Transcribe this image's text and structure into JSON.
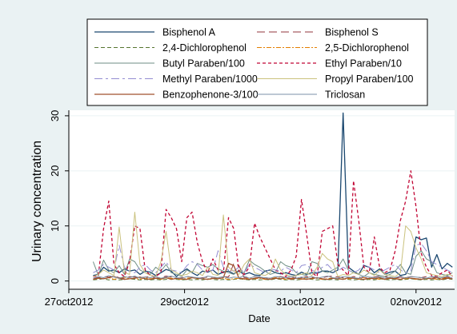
{
  "chart_data": {
    "type": "line",
    "title": "",
    "xlabel": "Date",
    "ylabel": "Urinary concentration",
    "x_domain_days": [
      "2012-10-27",
      "2012-11-02 16:00"
    ],
    "ylim": [
      -1.5,
      31
    ],
    "yticks": [
      0,
      10,
      20,
      30
    ],
    "xticks": [
      {
        "date": "2012-10-27",
        "label": "27oct2012"
      },
      {
        "date": "2012-10-29",
        "label": "29oct2012"
      },
      {
        "date": "2012-10-31",
        "label": "31oct2012"
      },
      {
        "date": "2012-11-02",
        "label": "02nov2012"
      }
    ],
    "grid": "y-major",
    "legend_position": "top",
    "x": [
      "2012-10-27 10:05",
      "2012-10-27 12:14",
      "2012-10-27 14:24",
      "2012-10-27 16:34",
      "2012-10-27 18:43",
      "2012-10-27 20:53",
      "2012-10-27 23:02",
      "2012-10-28 01:12",
      "2012-10-28 03:22",
      "2012-10-28 05:31",
      "2012-10-28 07:41",
      "2012-10-28 09:50",
      "2012-10-28 12:00",
      "2012-10-28 14:10",
      "2012-10-28 16:19",
      "2012-10-28 18:29",
      "2012-10-28 20:38",
      "2012-10-28 22:48",
      "2012-10-29 00:58",
      "2012-10-29 03:07",
      "2012-10-29 05:17",
      "2012-10-29 07:26",
      "2012-10-29 09:36",
      "2012-10-29 11:46",
      "2012-10-29 13:55",
      "2012-10-29 16:05",
      "2012-10-29 18:14",
      "2012-10-29 20:24",
      "2012-10-29 22:34",
      "2012-10-30 00:43",
      "2012-10-30 02:53",
      "2012-10-30 05:02",
      "2012-10-30 07:12",
      "2012-10-30 09:22",
      "2012-10-30 11:31",
      "2012-10-30 13:41",
      "2012-10-30 15:50",
      "2012-10-30 18:00",
      "2012-10-30 20:10",
      "2012-10-30 22:19",
      "2012-10-31 00:29",
      "2012-10-31 02:38",
      "2012-10-31 04:48",
      "2012-10-31 06:58",
      "2012-10-31 09:07",
      "2012-10-31 11:17",
      "2012-10-31 13:26",
      "2012-10-31 15:36",
      "2012-10-31 17:46",
      "2012-10-31 19:55",
      "2012-10-31 22:05",
      "2012-11-01 00:14",
      "2012-11-01 02:24",
      "2012-11-01 04:34",
      "2012-11-01 06:43",
      "2012-11-01 08:53",
      "2012-11-01 11:02",
      "2012-11-01 13:12",
      "2012-11-01 15:22",
      "2012-11-01 17:31",
      "2012-11-01 19:41",
      "2012-11-01 21:50",
      "2012-11-02 00:00",
      "2012-11-02 02:10",
      "2012-11-02 04:19",
      "2012-11-02 06:29",
      "2012-11-02 08:38",
      "2012-11-02 10:48",
      "2012-11-02 12:58",
      "2012-11-02 15:07"
    ],
    "series": [
      {
        "name": "Bisphenol A",
        "color": "#1a476f",
        "dash": "",
        "width": 1.3,
        "values": [
          1.0,
          1.2,
          2.5,
          1.8,
          2.0,
          1.5,
          2.2,
          1.8,
          2.0,
          1.2,
          1.8,
          1.6,
          1.0,
          1.5,
          2.1,
          1.8,
          0.8,
          1.6,
          2.2,
          1.5,
          1.0,
          1.8,
          1.6,
          2.0,
          1.2,
          1.6,
          1.8,
          1.3,
          1.8,
          1.2,
          1.5,
          1.1,
          1.0,
          1.8,
          2.0,
          1.5,
          1.3,
          1.5,
          1.2,
          1.0,
          1.6,
          1.2,
          1.5,
          1.4,
          1.8,
          1.8,
          1.5,
          2.0,
          30.5,
          2.5,
          1.8,
          1.2,
          2.8,
          2.5,
          1.5,
          2.2,
          1.2,
          1.6,
          1.8,
          1.0,
          1.2,
          3.0,
          8.0,
          7.5,
          7.8,
          2.5,
          4.8,
          2.2,
          3.2,
          2.5
        ]
      },
      {
        "name": "Bisphenol S",
        "color": "#90353b",
        "dash": "10,5",
        "width": 1.0,
        "values": [
          0.5,
          0.6,
          0.8,
          0.7,
          0.9,
          0.6,
          0.5,
          0.8,
          0.7,
          0.6,
          0.7,
          0.8,
          0.5,
          0.6,
          0.9,
          0.7,
          0.5,
          0.6,
          0.8,
          0.7,
          0.5,
          0.6,
          0.7,
          0.5,
          0.6,
          0.8,
          0.7,
          3.2,
          2.8,
          0.6,
          0.5,
          0.8,
          0.7,
          0.6,
          0.5,
          0.7,
          0.8,
          0.6,
          0.5,
          0.7,
          0.6,
          0.8,
          0.7,
          0.5,
          0.6,
          0.8,
          0.9,
          0.7,
          0.6,
          0.5,
          0.8,
          0.7,
          0.6,
          0.5,
          0.7,
          0.9,
          0.8,
          0.6,
          0.5,
          0.7,
          0.6,
          0.8,
          0.7,
          0.6,
          0.8,
          0.7,
          0.6,
          0.5,
          0.7,
          0.6
        ]
      },
      {
        "name": "2,4-Dichlorophenol",
        "color": "#55752f",
        "dash": "5,3",
        "width": 1.0,
        "values": [
          0.2,
          0.3,
          0.4,
          0.2,
          0.3,
          0.2,
          0.3,
          0.4,
          0.3,
          0.2,
          0.3,
          0.2,
          0.3,
          0.2,
          0.3,
          0.4,
          0.3,
          0.2,
          0.3,
          0.2,
          0.3,
          0.2,
          0.4,
          0.3,
          0.2,
          0.3,
          0.2,
          0.3,
          0.4,
          0.3,
          0.2,
          0.3,
          0.2,
          0.3,
          0.2,
          0.4,
          0.3,
          0.2,
          0.3,
          0.2,
          0.3,
          0.4,
          0.3,
          0.2,
          0.3,
          0.2,
          0.3,
          0.2,
          0.4,
          0.3,
          0.2,
          0.3,
          0.2,
          0.3,
          0.2,
          0.4,
          0.3,
          0.2,
          0.3,
          0.2,
          0.3,
          0.4,
          0.3,
          0.2,
          0.3,
          0.2,
          0.3,
          0.2,
          0.4,
          0.3
        ]
      },
      {
        "name": "2,5-Dichlorophenol",
        "color": "#e37e00",
        "dash": "6,2,2,2",
        "width": 1.0,
        "values": [
          0.3,
          0.5,
          0.4,
          0.6,
          0.3,
          0.5,
          0.7,
          0.4,
          0.5,
          0.3,
          0.6,
          0.4,
          0.5,
          0.3,
          0.6,
          0.5,
          0.4,
          0.3,
          0.5,
          0.6,
          0.4,
          0.5,
          0.3,
          0.4,
          0.6,
          0.5,
          0.3,
          0.4,
          0.5,
          0.3,
          0.6,
          0.4,
          0.5,
          0.3,
          0.4,
          0.6,
          0.5,
          0.3,
          0.4,
          0.5,
          0.3,
          0.6,
          0.4,
          0.5,
          0.3,
          0.4,
          0.6,
          0.5,
          0.3,
          0.4,
          0.5,
          0.3,
          0.6,
          0.4,
          0.5,
          0.3,
          0.4,
          0.6,
          0.5,
          0.3,
          0.4,
          0.5,
          0.3,
          0.6,
          0.4,
          0.5,
          0.3,
          0.4,
          0.6,
          0.5
        ]
      },
      {
        "name": "Butyl Paraben/100",
        "color": "#6e8e84",
        "dash": "",
        "width": 1.0,
        "values": [
          3.5,
          1.0,
          3.8,
          2.0,
          1.5,
          2.8,
          1.2,
          4.0,
          3.5,
          2.0,
          1.5,
          1.2,
          2.5,
          1.8,
          3.0,
          1.5,
          1.2,
          0.8,
          2.0,
          1.5,
          3.2,
          2.8,
          2.5,
          3.0,
          2.2,
          1.8,
          1.5,
          1.2,
          2.0,
          1.5,
          3.8,
          3.0,
          2.5,
          1.8,
          1.2,
          1.5,
          3.5,
          2.8,
          2.5,
          1.5,
          1.2,
          1.0,
          3.5,
          3.2,
          1.8,
          1.5,
          2.0,
          2.5,
          4.0,
          2.0,
          1.5,
          1.2,
          0.8,
          1.5,
          1.2,
          1.0,
          0.8,
          1.2,
          1.8,
          3.0,
          1.5,
          1.2,
          4.5,
          5.5,
          4.0,
          3.5,
          1.5,
          1.2,
          1.0,
          1.5
        ]
      },
      {
        "name": "Ethyl Paraben/10",
        "color": "#c10534",
        "dash": "4,3",
        "width": 1.3,
        "values": [
          0.8,
          1.0,
          9.5,
          14.5,
          3.0,
          1.5,
          0.8,
          3.5,
          10.0,
          9.5,
          2.0,
          1.0,
          0.8,
          1.5,
          13.0,
          11.5,
          9.5,
          3.5,
          11.5,
          12.5,
          7.0,
          3.5,
          1.5,
          4.0,
          2.0,
          1.5,
          11.5,
          9.5,
          1.8,
          1.2,
          2.5,
          10.5,
          8.0,
          6.0,
          4.0,
          2.0,
          1.5,
          0.8,
          2.0,
          4.5,
          14.8,
          8.5,
          1.5,
          0.8,
          9.0,
          9.5,
          10.0,
          3.0,
          2.0,
          1.0,
          18.2,
          11.0,
          2.5,
          1.5,
          8.0,
          2.5,
          1.5,
          2.0,
          5.5,
          11.0,
          14.5,
          20.0,
          13.5,
          5.0,
          2.5,
          1.0,
          0.8,
          1.5,
          2.0,
          0.8
        ]
      },
      {
        "name": "Methyl Paraben/1000",
        "color": "#938dd2",
        "dash": "10,4,3,4",
        "width": 1.0,
        "values": [
          1.5,
          2.0,
          3.0,
          2.5,
          2.0,
          6.5,
          2.5,
          1.8,
          1.5,
          2.5,
          3.0,
          2.0,
          1.5,
          2.5,
          3.5,
          2.0,
          1.8,
          1.5,
          2.8,
          3.5,
          3.0,
          2.0,
          1.5,
          2.0,
          5.5,
          2.5,
          2.0,
          1.8,
          2.5,
          1.5,
          3.0,
          2.5,
          2.0,
          1.5,
          2.2,
          2.0,
          1.8,
          2.5,
          2.0,
          1.5,
          2.8,
          3.0,
          2.0,
          1.5,
          2.5,
          3.0,
          2.0,
          1.8,
          2.5,
          2.0,
          1.5,
          2.0,
          3.0,
          2.5,
          2.0,
          1.5,
          2.0,
          2.5,
          3.0,
          2.0,
          1.5,
          1.8,
          6.5,
          6.8,
          5.5,
          3.5,
          3.0,
          2.5,
          2.0,
          1.5
        ]
      },
      {
        "name": "Propyl Paraben/100",
        "color": "#cac27e",
        "dash": "",
        "width": 1.0,
        "values": [
          0.8,
          1.2,
          2.0,
          1.5,
          1.0,
          9.8,
          1.5,
          1.2,
          12.5,
          3.0,
          1.5,
          1.0,
          0.8,
          3.5,
          9.0,
          2.0,
          1.5,
          1.0,
          1.2,
          1.8,
          1.5,
          1.0,
          2.5,
          1.2,
          1.0,
          12.0,
          2.5,
          1.8,
          1.2,
          3.0,
          4.0,
          1.5,
          1.2,
          1.0,
          1.5,
          4.0,
          2.0,
          1.2,
          0.8,
          1.0,
          1.2,
          1.5,
          1.0,
          2.5,
          5.0,
          4.0,
          3.5,
          0.8,
          1.2,
          1.0,
          1.5,
          1.2,
          2.0,
          1.5,
          1.0,
          2.0,
          1.2,
          1.0,
          0.8,
          1.5,
          10.0,
          9.0,
          6.0,
          4.0,
          1.5,
          1.2,
          1.0,
          0.8,
          1.2,
          1.0
        ]
      },
      {
        "name": "Benzophenone-3/100",
        "color": "#a0522d",
        "dash": "",
        "width": 1.3,
        "values": [
          0.3,
          0.5,
          0.4,
          0.6,
          0.8,
          0.5,
          0.3,
          0.4,
          0.5,
          0.7,
          0.4,
          0.3,
          0.5,
          0.4,
          0.6,
          0.3,
          0.5,
          0.4,
          0.3,
          0.6,
          0.5,
          0.4,
          0.3,
          0.5,
          0.4,
          0.6,
          3.2,
          2.8,
          0.5,
          0.4,
          0.3,
          0.5,
          0.6,
          0.4,
          0.3,
          0.5,
          0.4,
          0.6,
          0.3,
          0.5,
          0.4,
          0.3,
          0.5,
          0.6,
          0.4,
          0.3,
          0.5,
          0.4,
          0.3,
          0.6,
          0.5,
          0.4,
          0.3,
          0.5,
          0.4,
          0.6,
          0.3,
          0.5,
          0.4,
          0.3,
          0.6,
          0.5,
          0.4,
          0.3,
          0.5,
          0.4,
          0.6,
          0.3,
          0.5,
          0.4
        ]
      },
      {
        "name": "Triclosan",
        "color": "#7b92a8",
        "dash": "",
        "width": 1.0,
        "values": [
          0.5,
          0.8,
          0.6,
          1.0,
          0.7,
          0.5,
          0.8,
          0.6,
          0.9,
          0.5,
          0.7,
          0.6,
          0.8,
          0.5,
          0.7,
          0.9,
          0.6,
          0.5,
          0.8,
          0.7,
          0.6,
          0.5,
          0.9,
          0.7,
          0.6,
          0.8,
          0.5,
          0.7,
          0.6,
          0.9,
          0.5,
          0.8,
          0.7,
          0.6,
          0.5,
          0.8,
          0.7,
          0.6,
          0.9,
          0.5,
          0.7,
          0.6,
          0.8,
          0.5,
          0.7,
          0.9,
          0.6,
          0.5,
          0.8,
          0.7,
          0.6,
          0.5,
          0.9,
          0.7,
          0.6,
          0.8,
          0.5,
          0.7,
          0.6,
          0.9,
          0.5,
          0.8,
          0.7,
          0.6,
          0.5,
          0.8,
          0.7,
          0.6,
          0.9,
          0.5
        ]
      }
    ]
  }
}
